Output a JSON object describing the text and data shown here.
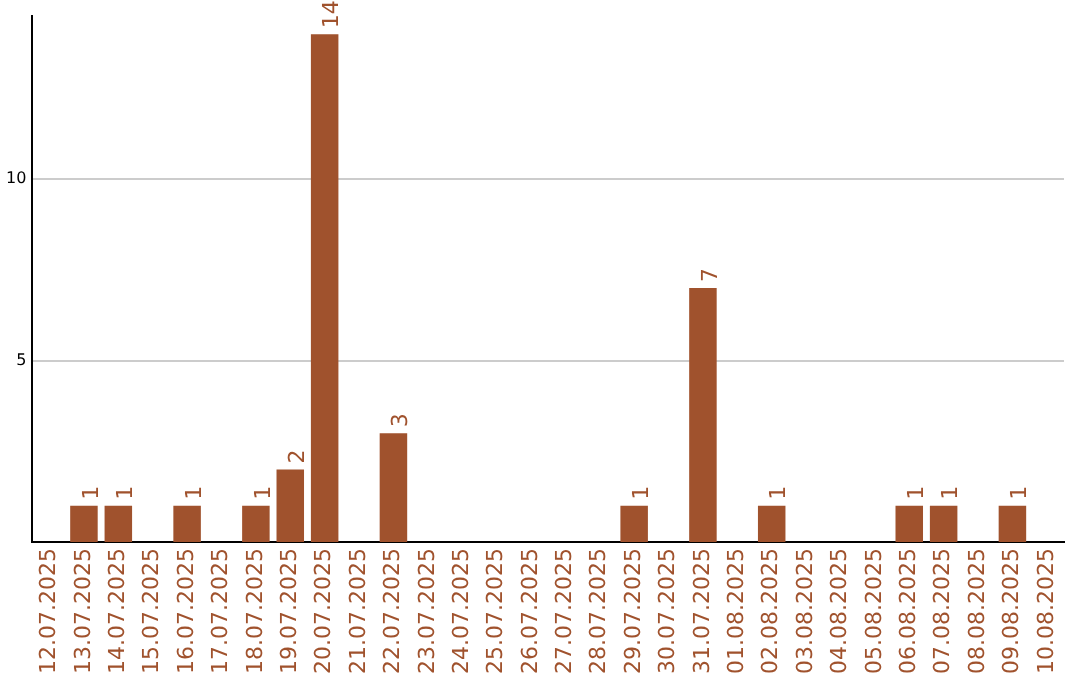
{
  "chart_data": {
    "type": "bar",
    "categories": [
      "12.07.2025",
      "13.07.2025",
      "14.07.2025",
      "15.07.2025",
      "16.07.2025",
      "17.07.2025",
      "18.07.2025",
      "19.07.2025",
      "20.07.2025",
      "21.07.2025",
      "22.07.2025",
      "23.07.2025",
      "24.07.2025",
      "25.07.2025",
      "26.07.2025",
      "27.07.2025",
      "28.07.2025",
      "29.07.2025",
      "30.07.2025",
      "31.07.2025",
      "01.08.2025",
      "02.08.2025",
      "03.08.2025",
      "04.08.2025",
      "05.08.2025",
      "06.08.2025",
      "07.08.2025",
      "08.08.2025",
      "09.08.2025",
      "10.08.2025"
    ],
    "values": [
      0,
      1,
      1,
      0,
      1,
      0,
      1,
      2,
      14,
      0,
      3,
      0,
      0,
      0,
      0,
      0,
      0,
      1,
      0,
      7,
      0,
      1,
      0,
      0,
      0,
      1,
      1,
      0,
      1,
      0
    ],
    "value_labels": [
      null,
      "1",
      "1",
      null,
      "1",
      null,
      "1",
      "2",
      "14",
      null,
      "3",
      null,
      null,
      null,
      null,
      null,
      null,
      "1",
      null,
      "7",
      null,
      "1",
      null,
      null,
      null,
      "1",
      "1",
      null,
      "1",
      null
    ],
    "color": "#a0522d",
    "ylim": [
      0,
      14.5
    ],
    "yticks": [
      5,
      10
    ],
    "grid": "y",
    "legend": false
  }
}
